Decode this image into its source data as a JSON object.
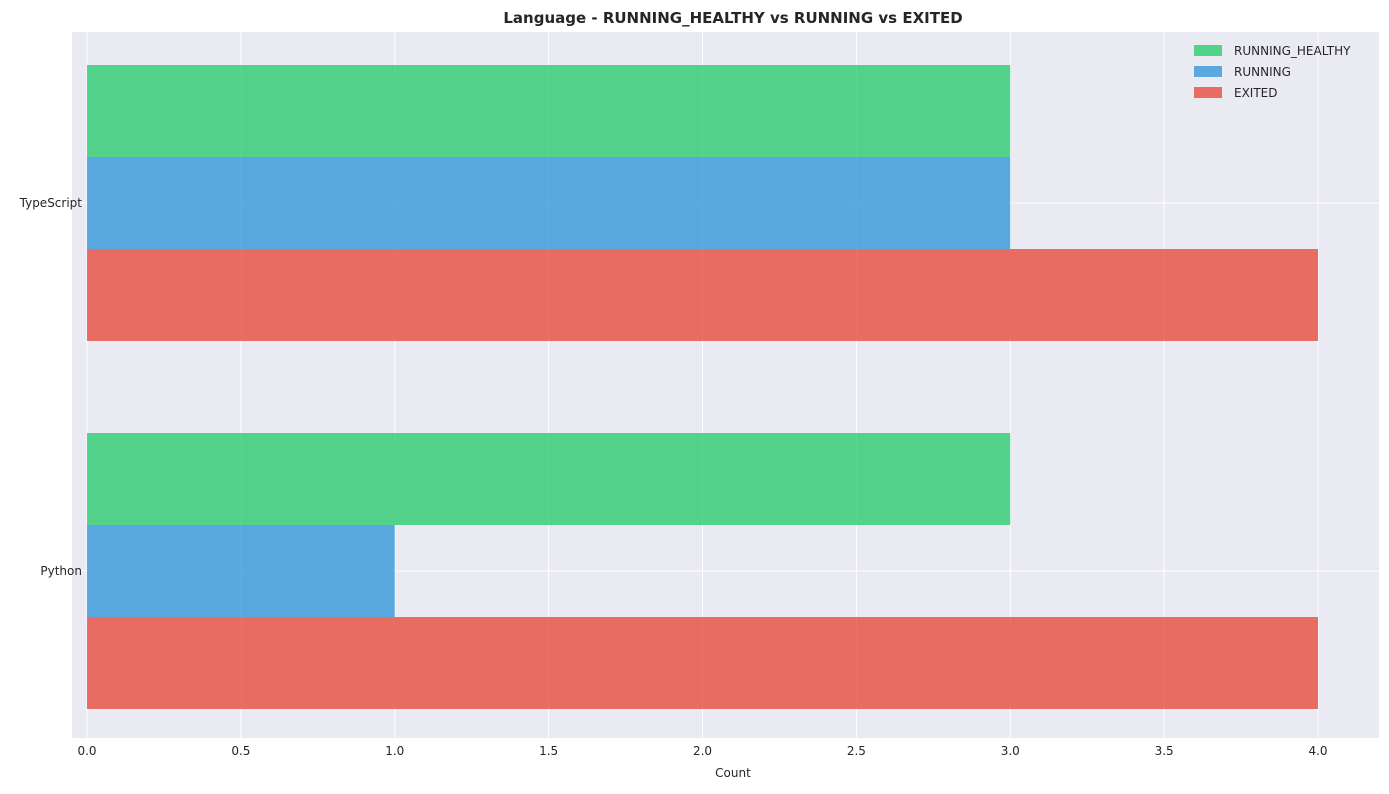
{
  "chart_data": {
    "type": "bar",
    "orientation": "horizontal",
    "title": "Language - RUNNING_HEALTHY vs RUNNING vs EXITED",
    "xlabel": "Count",
    "ylabel": "",
    "categories": [
      "TypeScript",
      "Python"
    ],
    "series": [
      {
        "name": "RUNNING_HEALTHY",
        "color": "#2ecc71",
        "values": [
          3,
          3
        ]
      },
      {
        "name": "RUNNING",
        "color": "#3498db",
        "values": [
          3,
          1
        ]
      },
      {
        "name": "EXITED",
        "color": "#e74c3c",
        "values": [
          4,
          4
        ]
      }
    ],
    "xlim": [
      0,
      4.2
    ],
    "xticks": [
      "0.0",
      "0.5",
      "1.0",
      "1.5",
      "2.0",
      "2.5",
      "3.0",
      "3.5",
      "4.0"
    ],
    "xtick_values": [
      0,
      0.5,
      1.0,
      1.5,
      2.0,
      2.5,
      3.0,
      3.5,
      4.0
    ],
    "grid": true,
    "legend_position": "top-right",
    "background": "#eaeaf2"
  }
}
